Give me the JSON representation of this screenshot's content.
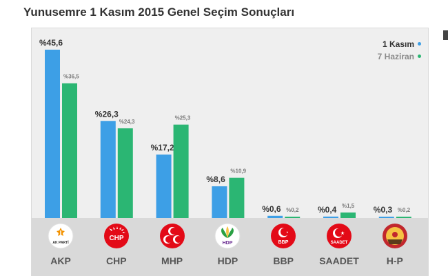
{
  "page": {
    "title": "Yunusemre 1 Kasım 2015 Genel Seçim Sonuçları"
  },
  "colors": {
    "kasim": "#3d9fe6",
    "haziran": "#2bb673",
    "value_text": "#333333",
    "small_text": "#7a7a7a"
  },
  "legend": {
    "kasim_label": "1 Kasım",
    "haziran_label": "7 Haziran",
    "placement": "top-right"
  },
  "chart_data": {
    "type": "bar",
    "title": "Yunusemre 1 Kasım 2015 Genel Seçim Sonuçları",
    "categories": [
      "AKP",
      "CHP",
      "MHP",
      "HDP",
      "BBP",
      "SAADET",
      "H-P"
    ],
    "series": [
      {
        "name": "1 Kasım",
        "color": "#3d9fe6",
        "values": [
          45.6,
          26.3,
          17.2,
          8.6,
          0.6,
          0.4,
          0.3
        ],
        "labels": [
          "%45,6",
          "%26,3",
          "%17,2",
          "%8,6",
          "%0,6",
          "%0,4",
          "%0,3"
        ]
      },
      {
        "name": "7 Haziran",
        "color": "#2bb673",
        "values": [
          36.5,
          24.3,
          25.3,
          10.9,
          0.2,
          1.5,
          0.2
        ],
        "labels": [
          "%36,5",
          "%24,3",
          "%25,3",
          "%10,9",
          "%0,2",
          "%1,5",
          "%0,2"
        ]
      }
    ],
    "xlabel": "",
    "ylabel": "",
    "ylim": [
      0,
      46
    ],
    "grid": false
  },
  "parties": [
    {
      "name": "AKP",
      "logo_icon": "akp-logo-icon",
      "logo_text": "AK PARTİ",
      "logo_bg": "#ffffff",
      "logo_fg": "#f39200"
    },
    {
      "name": "CHP",
      "logo_icon": "chp-logo-icon",
      "logo_text": "CHP",
      "logo_bg": "#e30a17",
      "logo_fg": "#ffffff"
    },
    {
      "name": "MHP",
      "logo_icon": "mhp-logo-icon",
      "logo_text": "",
      "logo_bg": "#e30a17",
      "logo_fg": "#ffffff"
    },
    {
      "name": "HDP",
      "logo_icon": "hdp-logo-icon",
      "logo_text": "HDP",
      "logo_bg": "#ffffff",
      "logo_fg": "#6a2c91"
    },
    {
      "name": "BBP",
      "logo_icon": "bbp-logo-icon",
      "logo_text": "BBP",
      "logo_bg": "#e30a17",
      "logo_fg": "#ffffff"
    },
    {
      "name": "SAADET",
      "logo_icon": "saadet-logo-icon",
      "logo_text": "SAADET",
      "logo_bg": "#e30a17",
      "logo_fg": "#ffffff"
    },
    {
      "name": "H-P",
      "logo_icon": "hp-logo-icon",
      "logo_text": "",
      "logo_bg": "#c1272d",
      "logo_fg": "#f6c343"
    }
  ]
}
